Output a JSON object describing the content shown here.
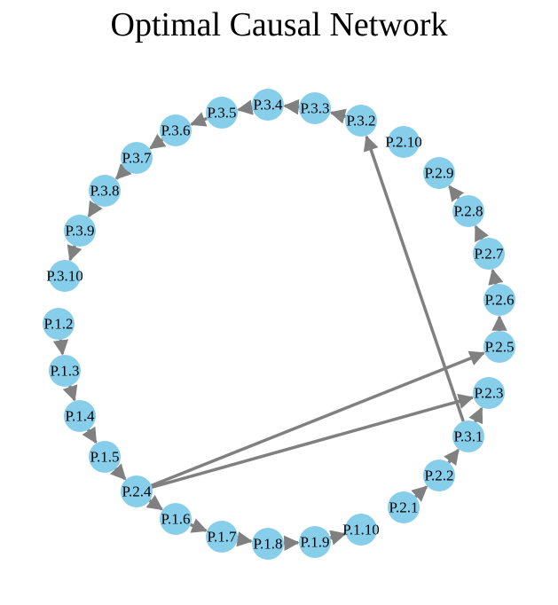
{
  "title": "Optimal Causal Network",
  "colors": {
    "node": "#87CEEB",
    "edge": "#808080",
    "label": "#000000",
    "background": "#ffffff"
  },
  "nodes": [
    "P.3.5",
    "P.3.4",
    "P.3.3",
    "P.3.2",
    "P.2.10",
    "P.3.6",
    "P.2.9",
    "P.3.7",
    "P.3.8",
    "P.2.8",
    "P.3.9",
    "P.2.7",
    "P.3.10",
    "P.2.6",
    "P.1.2",
    "P.2.5",
    "P.1.3",
    "P.2.3",
    "P.1.4",
    "P.3.1",
    "P.1.5",
    "P.2.2",
    "P.2.4",
    "P.2.1",
    "P.1.6",
    "P.1.10",
    "P.1.7",
    "P.1.8",
    "P.1.9"
  ],
  "edges": [
    [
      "P.3.4",
      "P.3.5"
    ],
    [
      "P.3.3",
      "P.3.4"
    ],
    [
      "P.3.2",
      "P.3.3"
    ],
    [
      "P.3.5",
      "P.3.6"
    ],
    [
      "P.3.6",
      "P.3.7"
    ],
    [
      "P.3.7",
      "P.3.8"
    ],
    [
      "P.3.8",
      "P.3.9"
    ],
    [
      "P.3.9",
      "P.3.10"
    ],
    [
      "P.3.1",
      "P.3.2"
    ],
    [
      "P.1.2",
      "P.1.3"
    ],
    [
      "P.1.3",
      "P.1.4"
    ],
    [
      "P.1.4",
      "P.1.5"
    ],
    [
      "P.1.5",
      "P.2.4"
    ],
    [
      "P.2.4",
      "P.1.6"
    ],
    [
      "P.1.6",
      "P.1.7"
    ],
    [
      "P.1.7",
      "P.1.8"
    ],
    [
      "P.1.8",
      "P.1.9"
    ],
    [
      "P.1.9",
      "P.1.10"
    ],
    [
      "P.2.4",
      "P.2.5"
    ],
    [
      "P.2.4",
      "P.2.3"
    ],
    [
      "P.2.1",
      "P.2.2"
    ],
    [
      "P.2.2",
      "P.3.1"
    ],
    [
      "P.3.1",
      "P.2.3"
    ],
    [
      "P.2.5",
      "P.2.6"
    ],
    [
      "P.2.6",
      "P.2.7"
    ],
    [
      "P.2.7",
      "P.2.8"
    ],
    [
      "P.2.8",
      "P.2.9"
    ]
  ]
}
